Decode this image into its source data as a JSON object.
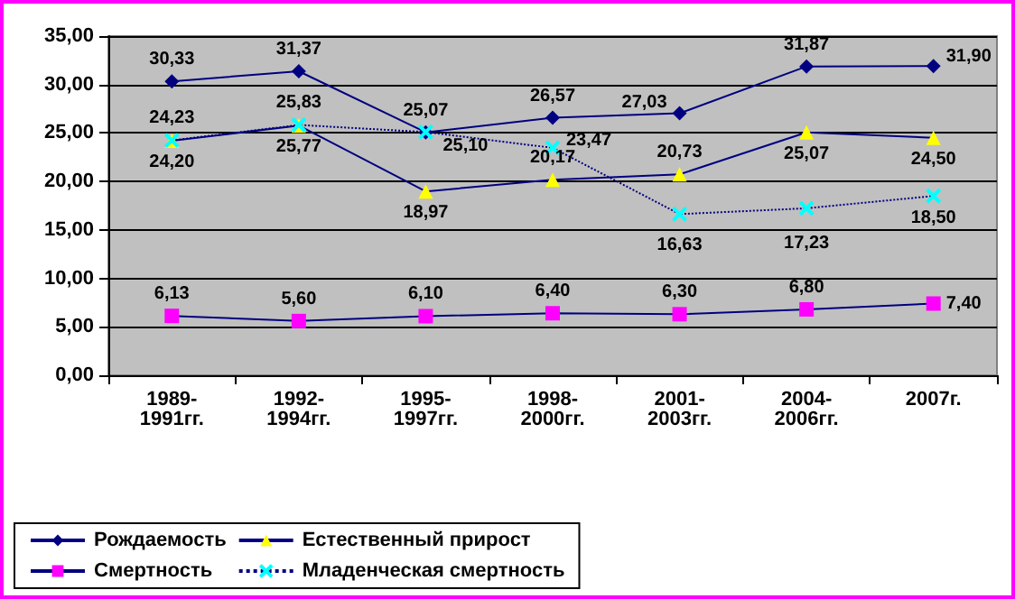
{
  "chart_data": {
    "type": "line",
    "categories": [
      "1989-1991гг.",
      "1992-1994гг.",
      "1995-1997гг.",
      "1998-2000гг.",
      "2001-2003гг.",
      "2004-2006гг.",
      "2007г."
    ],
    "series": [
      {
        "name": "Рождаемость",
        "color": "#000080",
        "marker": "diamond",
        "values": [
          30.33,
          31.37,
          25.07,
          26.57,
          27.03,
          31.87,
          31.9
        ],
        "value_labels": [
          "30,33",
          "31,37",
          "25,07",
          "26,57",
          "27,03",
          "31,87",
          "31,90"
        ]
      },
      {
        "name": "Смертность",
        "color": "#ff00ff",
        "marker": "square",
        "values": [
          6.13,
          5.6,
          6.1,
          6.4,
          6.3,
          6.8,
          7.4
        ],
        "value_labels": [
          "6,13",
          "5,60",
          "6,10",
          "6,40",
          "6,30",
          "6,80",
          "7,40"
        ]
      },
      {
        "name": "Естественный прирост",
        "color": "#ffff00",
        "marker": "triangle",
        "values": [
          24.2,
          25.77,
          18.97,
          20.17,
          20.73,
          25.07,
          24.5
        ],
        "value_labels": [
          "24,20",
          "25,77",
          "18,97",
          "20,17",
          "20,73",
          "25,07",
          "24,50"
        ]
      },
      {
        "name": "Младенческая смертность",
        "color": "#00ffff",
        "marker": "cross",
        "line_style": "dotted",
        "values": [
          24.23,
          25.83,
          25.1,
          23.47,
          16.63,
          17.23,
          18.5
        ],
        "value_labels": [
          "24,23",
          "25,83",
          "25,10",
          "23,47",
          "16,63",
          "17,23",
          "18,50"
        ]
      }
    ],
    "ylim": [
      0,
      35
    ],
    "yticks": [
      {
        "value": 0,
        "label": "0,00"
      },
      {
        "value": 5,
        "label": "5,00"
      },
      {
        "value": 10,
        "label": "10,00"
      },
      {
        "value": 15,
        "label": "15,00"
      },
      {
        "value": 20,
        "label": "20,00"
      },
      {
        "value": 25,
        "label": "25,00"
      },
      {
        "value": 30,
        "label": "30,00"
      },
      {
        "value": 35,
        "label": "35,00"
      }
    ],
    "grid": "y",
    "legend": "bottom",
    "data_labels": true
  }
}
